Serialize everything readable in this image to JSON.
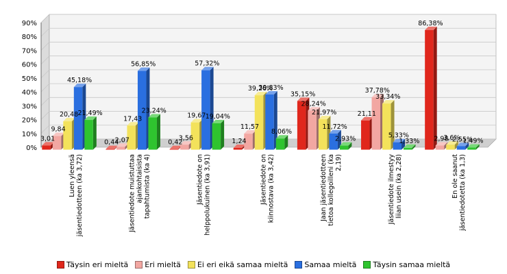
{
  "chart_data": {
    "type": "bar",
    "ylim": [
      0,
      90
    ],
    "yticks": [
      "0%",
      "10%",
      "20%",
      "30%",
      "40%",
      "50%",
      "60%",
      "70%",
      "80%",
      "90%"
    ],
    "grid": true,
    "legend_position": "bottom",
    "categories": [
      "Luen yleensä jäsentiedotteen (ka 3,72)",
      "Jäsentiedote muistuttaa ajankohtaisista tapahtumista (ka 4)",
      "Jäsentiedote on helppolukuinen (ka 3,91)",
      "Jäsentiedote on kiinnostava (ka 3,42)",
      "Jaan jäsentiedotteen tietoa kollegoilleni (ka 2,19)",
      "Jäsentiedote ilmestyy liian usein (ka 2,28)",
      "En ole saanut jäsentiedotetta (ka 1,3)"
    ],
    "series": [
      {
        "name": "Täysin eri mieltä",
        "color": "#e0271c",
        "values": [
          3.01,
          0.44,
          0.42,
          1.24,
          35.15,
          21.11,
          86.38
        ],
        "labels": [
          "3,01",
          "0,44",
          "0,42",
          "1,24",
          "35,15%",
          "21,11",
          "86,38%"
        ]
      },
      {
        "name": "Eri mieltä",
        "color": "#f2a7a2",
        "values": [
          9.84,
          2.07,
          3.56,
          11.57,
          28.24,
          37.78,
          2.98
        ],
        "labels": [
          "9,84",
          "2,07",
          "3,56",
          "11,57",
          "28,24%",
          "37,78%",
          "2,98"
        ]
      },
      {
        "name": "Ei eri eikä samaa mieltä",
        "color": "#f3e25b",
        "values": [
          20.48,
          17.43,
          19.67,
          39.26,
          21.97,
          33.34,
          3.6
        ],
        "labels": [
          "20,48",
          "17,43",
          "19,67",
          "39,26%",
          "21,97%",
          "33,34%",
          "3,6%"
        ]
      },
      {
        "name": "Samaa mieltä",
        "color": "#2a6fe0",
        "values": [
          45.18,
          56.85,
          57.32,
          39.83,
          11.72,
          5.33,
          2.55
        ],
        "labels": [
          "45,18%",
          "56,85%",
          "57,32%",
          "39,83%",
          "11,72%",
          "5,33%",
          "2,55%"
        ]
      },
      {
        "name": "Täysin samaa mieltä",
        "color": "#2fc42f",
        "values": [
          21.49,
          23.24,
          19.04,
          8.06,
          2.93,
          1.33,
          1.49
        ],
        "labels": [
          "21,49%",
          "23,24%",
          "19,04%",
          "8,06%",
          "2,93%",
          "1,33%",
          "1,49%"
        ]
      }
    ]
  }
}
